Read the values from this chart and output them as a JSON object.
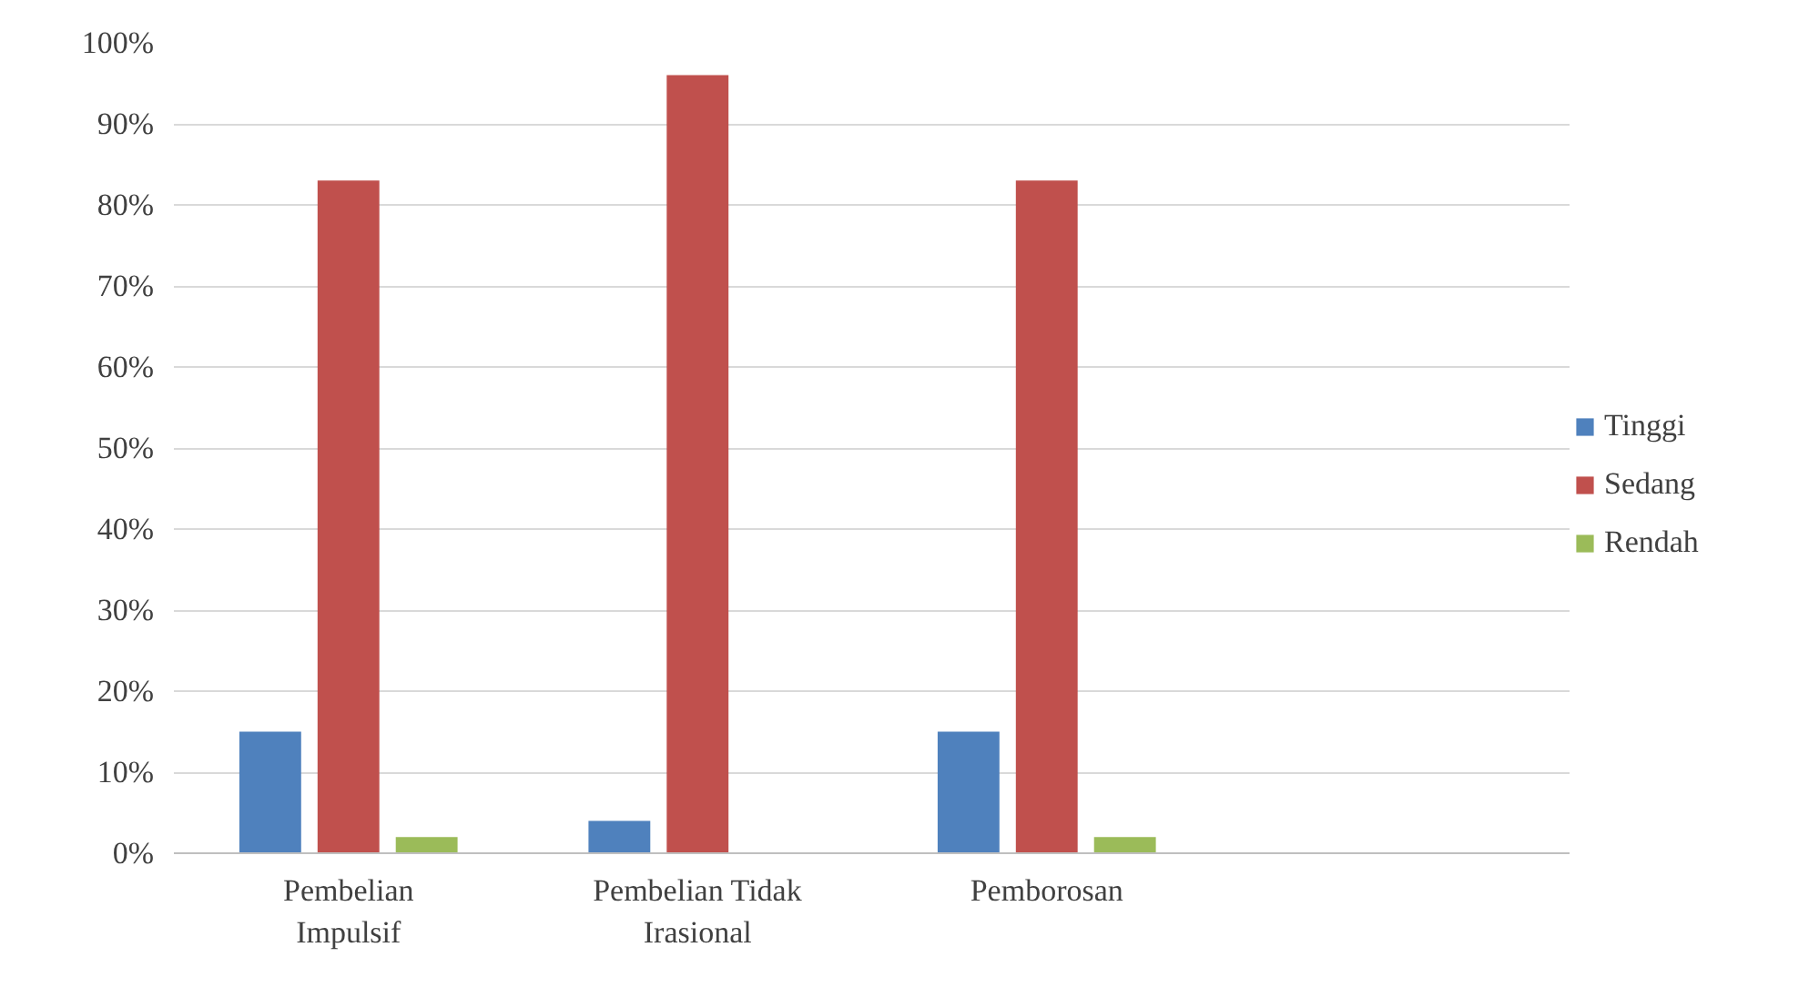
{
  "chart_data": {
    "type": "bar",
    "categories": [
      "Pembelian Impulsif",
      "Pembelian Tidak Irasional",
      "Pemborosan",
      null
    ],
    "series": [
      {
        "name": "Tinggi",
        "color": "#4f81bd",
        "values": [
          15,
          4,
          15,
          null
        ]
      },
      {
        "name": "Sedang",
        "color": "#c0504d",
        "values": [
          83,
          96,
          83,
          null
        ]
      },
      {
        "name": "Rendah",
        "color": "#9bbb59",
        "values": [
          2,
          0,
          2,
          null
        ]
      }
    ],
    "ylim": [
      0,
      100
    ],
    "yticks": [
      {
        "value": 0,
        "label": "0%"
      },
      {
        "value": 10,
        "label": "10%"
      },
      {
        "value": 20,
        "label": "20%"
      },
      {
        "value": 30,
        "label": "30%"
      },
      {
        "value": 40,
        "label": "40%"
      },
      {
        "value": 50,
        "label": "50%"
      },
      {
        "value": 60,
        "label": "60%"
      },
      {
        "value": 70,
        "label": "70%"
      },
      {
        "value": 80,
        "label": "80%"
      },
      {
        "value": 90,
        "label": "90%"
      },
      {
        "value": 100,
        "label": "100%"
      }
    ],
    "grid": "y",
    "legend": "right"
  }
}
